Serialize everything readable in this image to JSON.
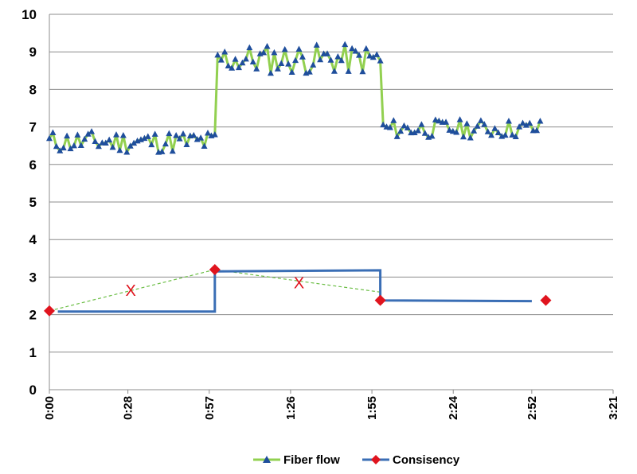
{
  "chart_data": {
    "type": "line",
    "x_ticks": [
      "0:00",
      "0:28",
      "0:57",
      "1:26",
      "1:55",
      "2:24",
      "2:52",
      "3:21"
    ],
    "y_ticks": [
      "0",
      "1",
      "2",
      "3",
      "4",
      "5",
      "6",
      "7",
      "8",
      "9",
      "10"
    ],
    "xlim": [
      "0:00",
      "3:21"
    ],
    "ylim": [
      0,
      10
    ],
    "grid": "horizontal",
    "legend_position": "bottom",
    "series": [
      {
        "name": "Fiber flow",
        "color": "#92D050",
        "marker": "triangle",
        "marker_color": "#1F4E9C",
        "segments": [
          {
            "x_start": "0:00",
            "x_end": "0:59",
            "mean": 6.6,
            "range": [
              6.3,
              6.9
            ]
          },
          {
            "x_start": "1:00",
            "x_end": "1:58",
            "mean": 8.8,
            "range": [
              8.4,
              9.2
            ]
          },
          {
            "x_start": "1:59",
            "x_end": "2:55",
            "mean": 6.95,
            "range": [
              6.7,
              7.2
            ]
          }
        ]
      },
      {
        "name": "Consisency",
        "color": "#3A6EB5",
        "marker": "diamond",
        "marker_color": "#E0141E",
        "step_line": [
          {
            "x": "0:03",
            "y": 2.08
          },
          {
            "x": "0:59",
            "y": 2.08
          },
          {
            "x": "0:59",
            "y": 3.15
          },
          {
            "x": "1:58",
            "y": 3.18
          },
          {
            "x": "1:58",
            "y": 2.38
          },
          {
            "x": "2:52",
            "y": 2.36
          }
        ],
        "points": [
          {
            "x": "0:00",
            "y": 2.1
          },
          {
            "x": "0:59",
            "y": 3.2
          },
          {
            "x": "1:58",
            "y": 2.38
          },
          {
            "x": "2:57",
            "y": 2.38
          }
        ],
        "interpolation": {
          "style": "dashed",
          "color": "#6BBE45",
          "points": [
            {
              "x": "0:00",
              "y": 2.1
            },
            {
              "x": "0:59",
              "y": 3.2
            },
            {
              "x": "1:58",
              "y": 2.6
            }
          ],
          "outliers": [
            {
              "x": "0:29",
              "y": 2.65
            },
            {
              "x": "1:29",
              "y": 2.85
            }
          ],
          "outlier_marker": "X",
          "outlier_color": "#E0141E"
        }
      }
    ]
  }
}
